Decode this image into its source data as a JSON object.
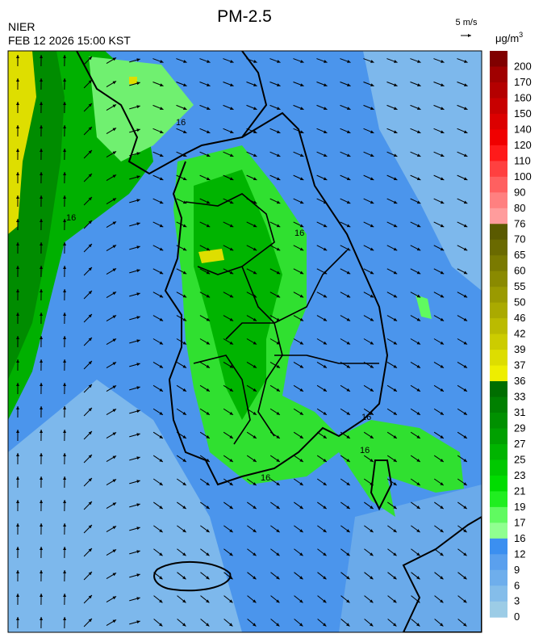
{
  "header": {
    "title": "PM-2.5",
    "agency": "NIER",
    "timestamp": "FEB 12 2026 15:00 KST",
    "wind_scale": "5 m/s"
  },
  "colorbar": {
    "unit": {
      "base": "μg/m",
      "sup": "3"
    },
    "levels": [
      "200",
      "170",
      "160",
      "150",
      "140",
      "120",
      "110",
      "100",
      "90",
      "80",
      "76",
      "70",
      "65",
      "60",
      "55",
      "50",
      "46",
      "42",
      "39",
      "37",
      "36",
      "33",
      "31",
      "29",
      "27",
      "25",
      "23",
      "21",
      "19",
      "17",
      "16",
      "12",
      "9",
      "6",
      "3",
      "0"
    ],
    "colors": [
      "#800000",
      "#a00000",
      "#b40000",
      "#c80000",
      "#dc0000",
      "#f00000",
      "#ff1a1a",
      "#ff4040",
      "#ff6060",
      "#ff8080",
      "#ff9c9c",
      "#5a5a00",
      "#6a6a00",
      "#7a7a00",
      "#8a8a00",
      "#9a9a00",
      "#aaaa00",
      "#bbbb00",
      "#cccc00",
      "#dddd00",
      "#eeee00",
      "#006e00",
      "#008000",
      "#009000",
      "#00a000",
      "#00b400",
      "#00c800",
      "#00dc00",
      "#20ee20",
      "#60fa60",
      "#90ff90",
      "#3b8ff0",
      "#5aa0ee",
      "#6eaeec",
      "#84bdea",
      "#9ccce6"
    ]
  },
  "map": {
    "contour_labels": [
      "16",
      "16",
      "16",
      "16",
      "16",
      "16"
    ]
  }
}
